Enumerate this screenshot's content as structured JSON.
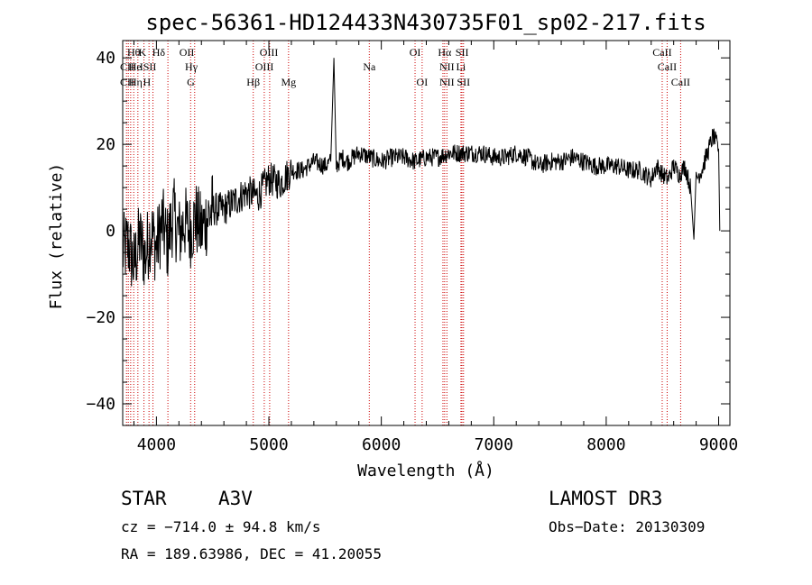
{
  "chart_data": {
    "type": "line",
    "title": "spec-56361-HD124433N430735F01_sp02-217.fits",
    "xlabel": "Wavelength (Å)",
    "ylabel": "Flux (relative)",
    "xlim": [
      3700,
      9100
    ],
    "ylim": [
      -45,
      44
    ],
    "xticks": [
      4000,
      5000,
      6000,
      7000,
      8000,
      9000
    ],
    "yticks": [
      -40,
      -20,
      0,
      20,
      40
    ],
    "grid": false,
    "series": [
      {
        "name": "spectrum",
        "x": [
          3700,
          3750,
          3800,
          3850,
          3900,
          3950,
          4000,
          4050,
          4100,
          4150,
          4200,
          4250,
          4300,
          4350,
          4400,
          4450,
          4500,
          4600,
          4700,
          4800,
          4900,
          5000,
          5100,
          5200,
          5300,
          5400,
          5500,
          5550,
          5578,
          5600,
          5650,
          5700,
          5800,
          5900,
          6000,
          6100,
          6200,
          6300,
          6400,
          6500,
          6600,
          6700,
          6800,
          6900,
          7000,
          7100,
          7200,
          7300,
          7400,
          7500,
          7600,
          7700,
          7800,
          7900,
          8000,
          8100,
          8200,
          8300,
          8400,
          8450,
          8500,
          8550,
          8600,
          8650,
          8700,
          8750,
          8780,
          8800,
          8850,
          8900,
          8950,
          9000,
          9010
        ],
        "y": [
          -5,
          -3,
          -8,
          -2,
          -6,
          0,
          -4,
          2,
          -3,
          4,
          -1,
          2,
          0,
          3,
          0,
          3,
          5,
          5,
          7,
          9,
          8,
          12,
          11,
          14,
          14,
          16,
          15,
          16,
          40,
          15,
          17,
          16,
          18,
          17,
          16,
          17,
          17,
          16,
          17,
          17,
          18,
          18,
          18,
          18,
          17,
          17,
          18,
          17,
          15,
          16,
          16,
          17,
          16,
          15,
          15,
          15,
          14,
          14,
          12,
          15,
          13,
          12,
          15,
          13,
          15,
          10,
          -2,
          12,
          14,
          18,
          22,
          19,
          0
        ]
      }
    ],
    "annotations": [
      {
        "label": "CaII",
        "x": 3934
      },
      {
        "label": "CaII",
        "x": 3969
      },
      {
        "label": "Hδ",
        "x": 4102
      },
      {
        "label": "Hγ",
        "x": 4340
      },
      {
        "label": "Hβ",
        "x": 4861
      },
      {
        "label": "Mg",
        "x": 5175
      },
      {
        "label": "Na",
        "x": 5893
      },
      {
        "label": "Hα",
        "x": 6563
      },
      {
        "label": "CaII",
        "x": 8498
      },
      {
        "label": "CaII",
        "x": 8542
      },
      {
        "label": "CaII",
        "x": 8662
      }
    ]
  },
  "line_labels": {
    "row1": [
      {
        "label": "Hθ",
        "x": 3798
      },
      {
        "label": "K",
        "x": 3875
      },
      {
        "label": "Hδ",
        "x": 4020
      },
      {
        "label": "OII",
        "x": 4270
      },
      {
        "label": "OIII",
        "x": 5000
      },
      {
        "label": "OI",
        "x": 6300
      },
      {
        "label": "Hα",
        "x": 6563
      },
      {
        "label": "SII",
        "x": 6718
      },
      {
        "label": "CaII",
        "x": 8498
      }
    ],
    "row2": [
      {
        "label": "CII",
        "x": 3740
      },
      {
        "label": "He",
        "x": 3810
      },
      {
        "label": "ISII",
        "x": 3925
      },
      {
        "label": "Hγ",
        "x": 4310
      },
      {
        "label": "OIII",
        "x": 4960
      },
      {
        "label": "Na",
        "x": 5893
      },
      {
        "label": "NII",
        "x": 6583
      },
      {
        "label": "Li",
        "x": 6708
      },
      {
        "label": "CaII",
        "x": 8542
      }
    ],
    "row3": [
      {
        "label": "CII",
        "x": 3740
      },
      {
        "label": "Hη",
        "x": 3815
      },
      {
        "label": "H",
        "x": 3915
      },
      {
        "label": "G",
        "x": 4305
      },
      {
        "label": "Hβ",
        "x": 4861
      },
      {
        "label": "Mg",
        "x": 5175
      },
      {
        "label": "OI",
        "x": 6363
      },
      {
        "label": "NII",
        "x": 6583
      },
      {
        "label": "SII",
        "x": 6731
      },
      {
        "label": "CaII",
        "x": 8662
      }
    ],
    "line_positions": [
      3734,
      3750,
      3771,
      3798,
      3835,
      3889,
      3934,
      3969,
      4102,
      4304,
      4340,
      4861,
      4959,
      5007,
      5175,
      5893,
      6300,
      6363,
      6548,
      6563,
      6583,
      6708,
      6717,
      6731,
      8498,
      8542,
      8662
    ]
  },
  "info": {
    "class": "STAR",
    "subclass": "A3V",
    "survey": "LAMOST DR3",
    "cz": "cz = −714.0 ± 94.8 km/s",
    "obs_date": "Obs−Date: 20130309",
    "coords": "RA = 189.63986, DEC =  41.20055"
  },
  "colors": {
    "axis": "#000000",
    "spectrum": "#000000",
    "line_markers": "#cc0000"
  }
}
